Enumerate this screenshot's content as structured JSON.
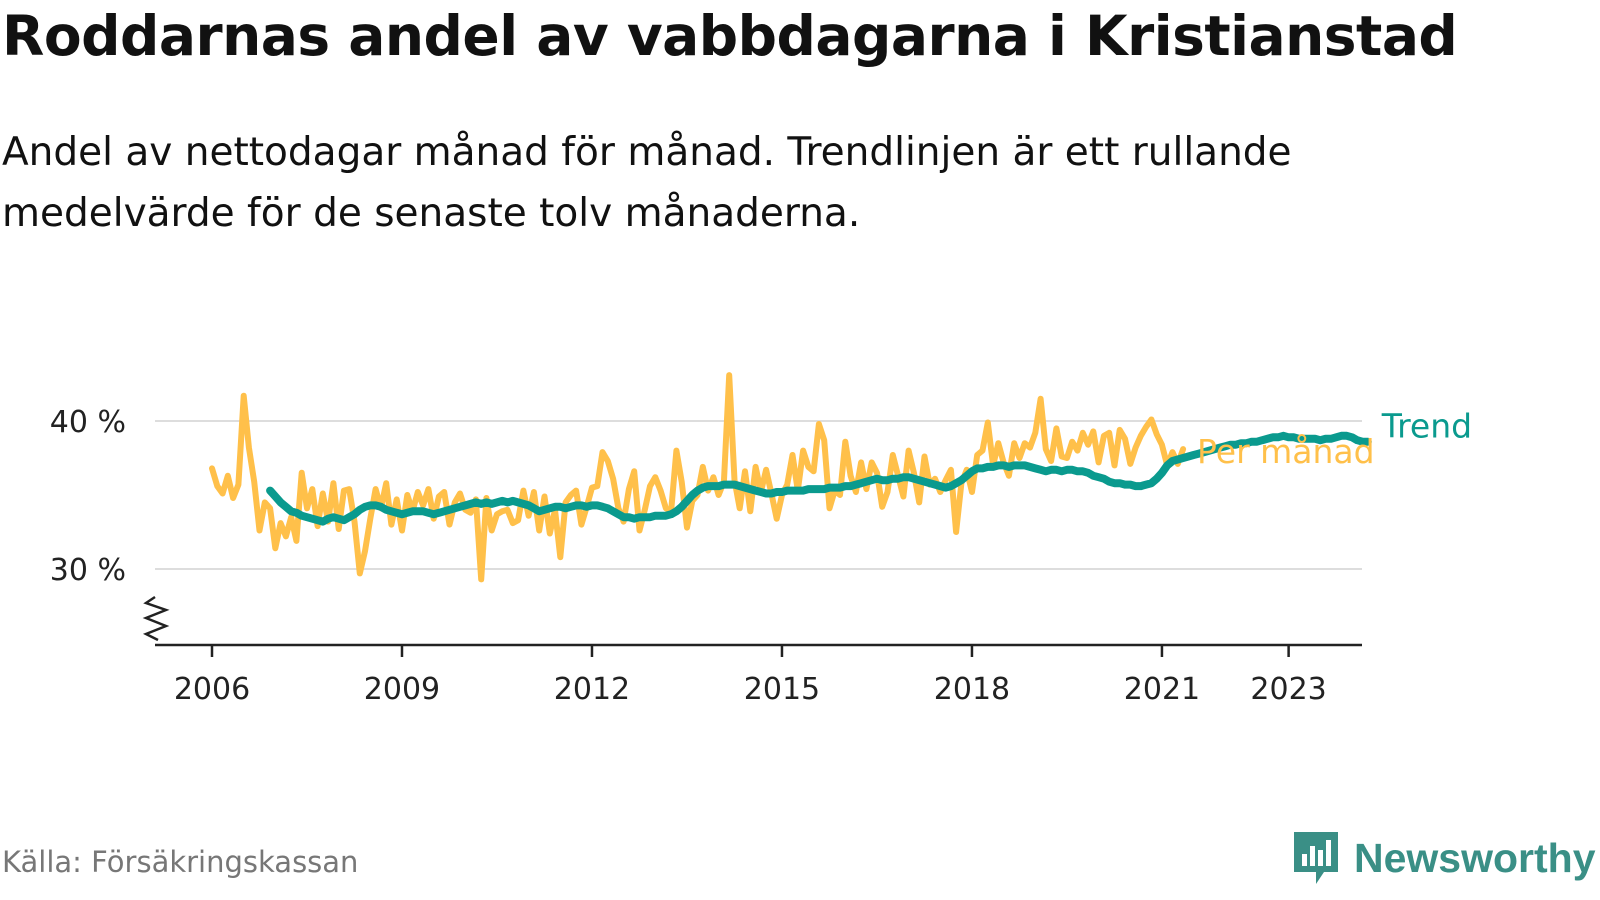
{
  "title": "Roddarnas andel av vabbdagarna i Kristianstad",
  "subtitle": "Andel av nettodagar månad för månad. Trendlinjen är ett rullande medelvärde för de senaste tolv månaderna.",
  "source": "Källa: Försäkringskassan",
  "brand": "Newsworthy",
  "colors": {
    "monthly": "#ffc04a",
    "trend": "#0a9a8e",
    "grid": "#dddddd",
    "axis": "#222222",
    "brand": "#3a8f86"
  },
  "chart_data": {
    "type": "line",
    "x_axis": {
      "ticks": [
        2006,
        2009,
        2012,
        2015,
        2018,
        2021,
        2023
      ],
      "range": [
        2005.8,
        2025.0
      ]
    },
    "y_axis": {
      "ticks": [
        30,
        40
      ],
      "tick_labels": [
        "30 %",
        "40 %"
      ],
      "range": [
        25,
        44
      ],
      "unit": "%",
      "broken_axis": true
    },
    "grid": true,
    "series": [
      {
        "name": "Per månad",
        "x_start": 2006.0,
        "x_step_months": 1,
        "values": [
          36.8,
          35.6,
          35.1,
          36.3,
          34.8,
          35.7,
          41.7,
          38.2,
          35.9,
          32.6,
          34.5,
          34.1,
          31.4,
          33.1,
          32.2,
          33.5,
          31.9,
          36.5,
          34.1,
          35.4,
          32.9,
          35.1,
          33.2,
          35.8,
          32.7,
          35.3,
          35.4,
          33.2,
          29.7,
          31.2,
          33.4,
          35.4,
          34.1,
          35.8,
          33.0,
          34.7,
          32.6,
          35.0,
          33.9,
          35.2,
          34.3,
          35.4,
          33.4,
          34.9,
          35.2,
          33.0,
          34.5,
          35.1,
          34.0,
          33.8,
          34.7,
          29.3,
          34.8,
          32.6,
          33.7,
          33.9,
          34.0,
          33.1,
          33.3,
          35.3,
          33.6,
          35.2,
          32.6,
          34.9,
          32.4,
          34.0,
          30.8,
          34.5,
          35.0,
          35.3,
          33.0,
          34.2,
          35.5,
          35.6,
          37.9,
          37.3,
          36.1,
          34.1,
          33.2,
          35.4,
          36.6,
          32.6,
          34.0,
          35.6,
          36.2,
          35.3,
          34.1,
          33.9,
          38.0,
          35.9,
          32.8,
          34.6,
          35.0,
          36.9,
          35.3,
          36.2,
          35.0,
          35.9,
          43.1,
          36.0,
          34.1,
          36.6,
          33.9,
          36.9,
          35.2,
          36.7,
          35.1,
          33.4,
          35.0,
          35.7,
          37.7,
          35.3,
          38.0,
          36.9,
          36.6,
          39.8,
          38.7,
          34.1,
          35.3,
          35.0,
          38.6,
          36.3,
          35.2,
          37.2,
          35.4,
          37.2,
          36.5,
          34.2,
          35.2,
          37.7,
          36.3,
          34.9,
          38.0,
          36.5,
          34.5,
          37.6,
          35.7,
          36.1,
          35.2,
          36.0,
          36.7,
          32.5,
          35.8,
          36.7,
          35.2,
          37.7,
          38.0,
          39.9,
          37.0,
          38.5,
          37.2,
          36.3,
          38.5,
          37.5,
          38.5,
          38.2,
          39.2,
          41.5,
          38.1,
          37.3,
          39.5,
          37.6,
          37.5,
          38.6,
          38.0,
          39.2,
          38.4,
          39.3,
          37.2,
          39.0,
          39.2,
          37.0,
          39.4,
          38.8,
          37.1,
          38.2,
          39.0,
          39.6,
          40.1,
          39.1,
          38.4,
          37.0,
          37.9,
          37.1,
          38.1
        ]
      },
      {
        "name": "Trend",
        "x_start": 2006.917,
        "x_step_months": 1,
        "values": [
          35.3,
          34.9,
          34.5,
          34.2,
          33.9,
          33.8,
          33.6,
          33.5,
          33.4,
          33.3,
          33.2,
          33.4,
          33.5,
          33.4,
          33.3,
          33.5,
          33.7,
          34.0,
          34.2,
          34.3,
          34.3,
          34.2,
          34.0,
          33.9,
          33.8,
          33.7,
          33.8,
          33.9,
          33.9,
          33.9,
          33.8,
          33.7,
          33.8,
          33.9,
          34.0,
          34.1,
          34.2,
          34.3,
          34.4,
          34.5,
          34.4,
          34.5,
          34.4,
          34.5,
          34.6,
          34.5,
          34.6,
          34.5,
          34.4,
          34.3,
          34.1,
          33.9,
          34.0,
          34.1,
          34.2,
          34.2,
          34.1,
          34.2,
          34.3,
          34.3,
          34.2,
          34.3,
          34.3,
          34.2,
          34.1,
          33.9,
          33.7,
          33.5,
          33.5,
          33.4,
          33.5,
          33.5,
          33.5,
          33.6,
          33.6,
          33.6,
          33.7,
          33.9,
          34.2,
          34.6,
          35.0,
          35.3,
          35.5,
          35.6,
          35.6,
          35.6,
          35.7,
          35.7,
          35.7,
          35.6,
          35.5,
          35.4,
          35.3,
          35.2,
          35.1,
          35.1,
          35.2,
          35.2,
          35.3,
          35.3,
          35.3,
          35.3,
          35.4,
          35.4,
          35.4,
          35.4,
          35.5,
          35.5,
          35.5,
          35.6,
          35.6,
          35.7,
          35.8,
          35.9,
          36.0,
          36.1,
          36.0,
          36.0,
          36.1,
          36.1,
          36.2,
          36.2,
          36.1,
          36.0,
          35.9,
          35.8,
          35.7,
          35.6,
          35.5,
          35.6,
          35.8,
          36.0,
          36.3,
          36.6,
          36.8,
          36.8,
          36.9,
          36.9,
          37.0,
          37.0,
          36.9,
          37.0,
          37.0,
          37.0,
          36.9,
          36.8,
          36.7,
          36.6,
          36.7,
          36.7,
          36.6,
          36.7,
          36.7,
          36.6,
          36.6,
          36.5,
          36.3,
          36.2,
          36.1,
          35.9,
          35.8,
          35.8,
          35.7,
          35.7,
          35.6,
          35.6,
          35.7,
          35.8,
          36.1,
          36.5,
          37.0,
          37.3,
          37.4,
          37.5,
          37.6,
          37.7,
          37.8,
          37.9,
          38.0,
          38.1,
          38.2,
          38.3,
          38.4,
          38.4,
          38.5,
          38.5,
          38.6,
          38.6,
          38.7,
          38.8,
          38.9,
          38.9,
          39.0,
          38.9,
          38.9,
          38.8,
          38.8,
          38.8,
          38.8,
          38.7,
          38.8,
          38.8,
          38.9,
          39.0,
          39.0,
          38.9,
          38.7,
          38.6,
          38.6
        ]
      }
    ]
  }
}
